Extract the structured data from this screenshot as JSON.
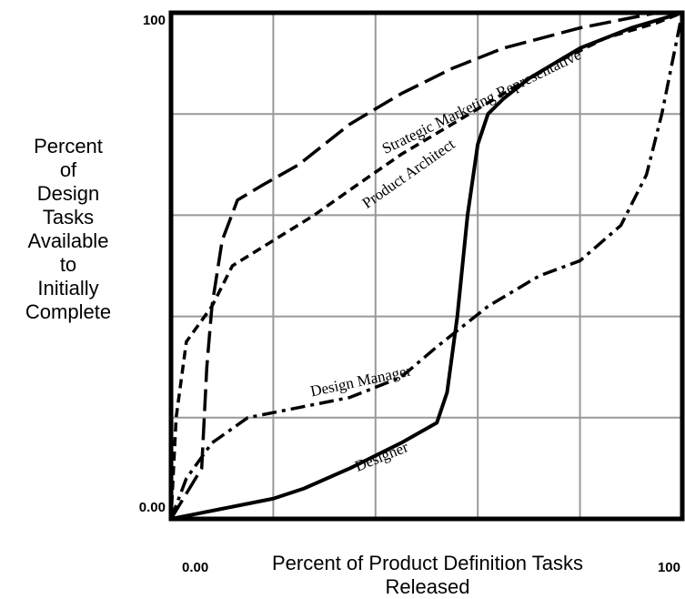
{
  "chart_data": {
    "type": "line",
    "xlabel": "Percent of Product Definition Tasks\nReleased",
    "ylabel": "Percent\nof\nDesign\nTasks\nAvailable\nto\nInitially\nComplete",
    "xlim": [
      0,
      100
    ],
    "ylim": [
      0,
      100
    ],
    "xticks": [
      {
        "value": 0,
        "label": "0.00"
      },
      100
    ],
    "yticks": [
      {
        "value": 0,
        "label": "0.00"
      },
      100
    ],
    "xgrid": [
      20,
      40,
      60,
      80
    ],
    "ygrid": [
      20,
      40,
      60,
      80
    ],
    "series": [
      {
        "name": "Designer",
        "color": "#000000",
        "x": [
          0,
          5,
          10,
          20,
          26,
          35,
          45,
          52,
          54,
          56,
          58,
          60,
          62,
          65,
          70,
          80,
          90,
          100
        ],
        "values": [
          0,
          1,
          2,
          4,
          6,
          10,
          15,
          19,
          25,
          40,
          60,
          74,
          80,
          83,
          87,
          93,
          97,
          100
        ]
      },
      {
        "name": "Design Manager",
        "color": "#000000",
        "x": [
          0,
          3,
          8,
          15,
          25,
          35,
          45,
          52,
          62,
          72,
          80,
          88,
          93,
          96,
          98,
          100
        ],
        "values": [
          0,
          8,
          15,
          20,
          22,
          24,
          28,
          34,
          42,
          48,
          51,
          58,
          68,
          80,
          90,
          100
        ]
      },
      {
        "name": "Product Architect",
        "color": "#000000",
        "x": [
          0,
          1,
          3,
          8,
          12,
          20,
          28,
          35,
          45,
          55,
          65,
          75,
          85,
          95,
          100
        ],
        "values": [
          0,
          20,
          35,
          42,
          50,
          55,
          60,
          65,
          72,
          78,
          84,
          90,
          95,
          98,
          100
        ]
      },
      {
        "name": "Strategic Marketing Representative",
        "color": "#000000",
        "x": [
          0,
          6,
          7,
          8,
          10,
          13,
          18,
          25,
          35,
          45,
          55,
          65,
          80,
          95,
          100
        ],
        "values": [
          0,
          10,
          30,
          42,
          55,
          63,
          66,
          70,
          78,
          84,
          89,
          93,
          97,
          100,
          100
        ]
      }
    ]
  }
}
